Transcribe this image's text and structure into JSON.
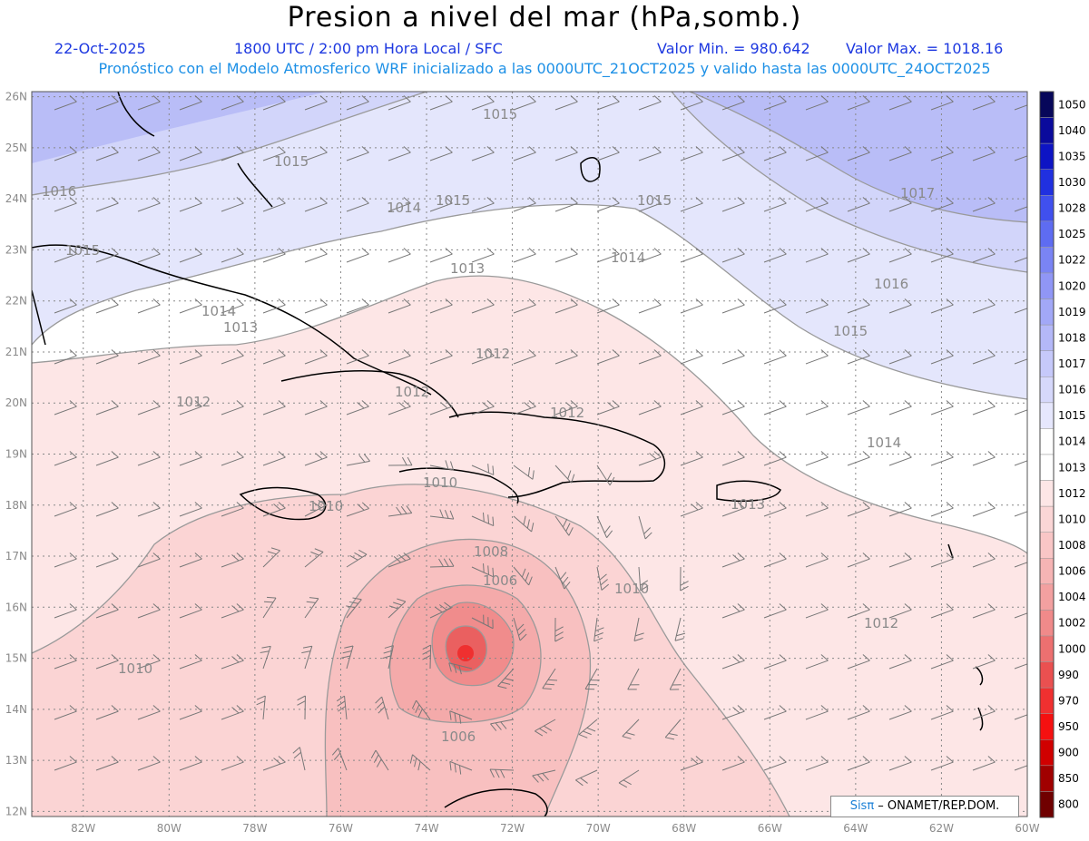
{
  "header": {
    "title": "Presion a nivel del mar (hPa,somb.)",
    "date": "22-Oct-2025",
    "time": "1800 UTC / 2:00 pm Hora Local / SFC",
    "min": "Valor Min. = 980.642",
    "max": "Valor Max. = 1018.16",
    "subtitle": "Pronóstico con el Modelo Atmosferico WRF inicializado a las 0000UTC_21OCT2025 y valido hasta las  0000UTC_24OCT2025"
  },
  "map": {
    "lon_range": [
      -83.2,
      -60.0
    ],
    "lat_range": [
      11.9,
      26.1
    ],
    "lon_ticks": [
      "82W",
      "80W",
      "78W",
      "76W",
      "74W",
      "72W",
      "70W",
      "68W",
      "66W",
      "64W",
      "62W",
      "60W"
    ],
    "lat_ticks": [
      "12N",
      "13N",
      "14N",
      "15N",
      "16N",
      "17N",
      "18N",
      "19N",
      "20N",
      "21N",
      "22N",
      "23N",
      "24N",
      "25N",
      "26N"
    ],
    "contour_labels": [
      "1015",
      "1015",
      "1015",
      "1015",
      "1016",
      "1015",
      "1014",
      "1013",
      "1014",
      "1014",
      "1013",
      "1012",
      "1012",
      "1012",
      "1012",
      "1010",
      "1010",
      "1008",
      "1006",
      "1006",
      "1010",
      "1010",
      "1012",
      "1013",
      "1014",
      "1015",
      "1016",
      "1017"
    ],
    "storm_center": {
      "lon": -73.0,
      "lat": 15.1,
      "min_pressure": 980.642
    }
  },
  "legend": {
    "levels": [
      "1050",
      "1040",
      "1035",
      "1030",
      "1028",
      "1025",
      "1022",
      "1020",
      "1019",
      "1018",
      "1017",
      "1016",
      "1015",
      "1014",
      "1013",
      "1012",
      "1010",
      "1008",
      "1006",
      "1004",
      "1002",
      "1000",
      "990",
      "970",
      "950",
      "900",
      "850",
      "800"
    ],
    "colors": [
      "#07075a",
      "#0a0a9c",
      "#0d14c4",
      "#2030e0",
      "#4050ee",
      "#5e6cf2",
      "#7a84f4",
      "#9096f6",
      "#a2a8f7",
      "#b4b8f8",
      "#c6c9fa",
      "#d6d8fb",
      "#e6e7fd",
      "#ffffff",
      "#ffffff",
      "#fde6e6",
      "#fbd6d6",
      "#f9c6c6",
      "#f6b4b4",
      "#f3a0a0",
      "#f08a8a",
      "#ed7070",
      "#ea5050",
      "#f03030",
      "#f51010",
      "#d00000",
      "#a00000",
      "#700000"
    ]
  },
  "credit": {
    "sis": "Sisπ",
    "org": " – ONAMET/REP.DOM."
  },
  "colors": {
    "blue_text": "#1d38e0",
    "cyan_text": "#1d90e6"
  }
}
